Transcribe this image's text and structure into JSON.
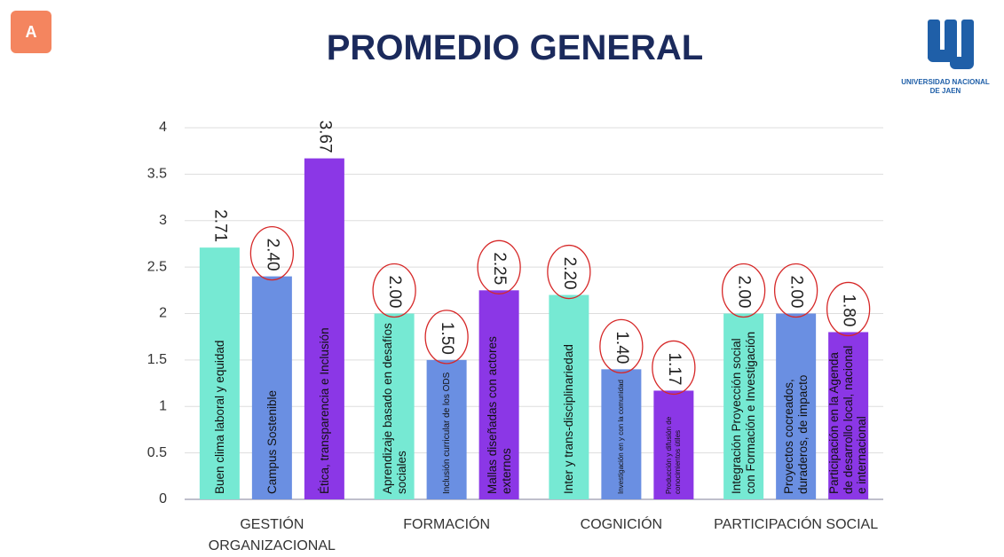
{
  "header": {
    "badge": "A",
    "logo_text": "UNIVERSIDAD NACIONAL DE JAEN"
  },
  "chart_data": {
    "type": "bar",
    "title": "PROMEDIO GENERAL",
    "groups": [
      "GESTIÓN ORGANIZACIONAL",
      "FORMACIÓN",
      "COGNICIÓN",
      "PARTICIPACIÓN SOCIAL"
    ],
    "categories": [
      "Buen clima laboral y equidad",
      "Campus Sostenible",
      "Ética, transparencia e Inclusión",
      "Aprendizaje basado en desafíos sociales",
      "Inclusión curricular de los ODS",
      "Mallas diseñadas con actores externos",
      "Inter y trans-disciplinariedad",
      "Investigación en y con la comunidad",
      "Producción y difusión de conocimientos útiles",
      "Integración Proyección social con Formación e Investigación",
      "Proyectos cocreados, duraderos, de impacto",
      "Participación en la Agenda de desarrollo local, nacional e internacional"
    ],
    "values": [
      2.71,
      2.4,
      3.67,
      2.0,
      1.5,
      2.25,
      2.2,
      1.4,
      1.17,
      2.0,
      2.0,
      1.8
    ],
    "value_labels": [
      "2.71",
      "2.40",
      "3.67",
      "2.00",
      "1.50",
      "2.25",
      "2.20",
      "1.40",
      "1.17",
      "2.00",
      "2.00",
      "1.80"
    ],
    "colors": [
      "#76e9d3",
      "#6a8fe2",
      "#8b37e6"
    ],
    "ylim": [
      0,
      4
    ],
    "yticks": [
      0,
      0.5,
      1,
      1.5,
      2,
      2.5,
      3,
      3.5,
      4
    ],
    "grid": true
  }
}
